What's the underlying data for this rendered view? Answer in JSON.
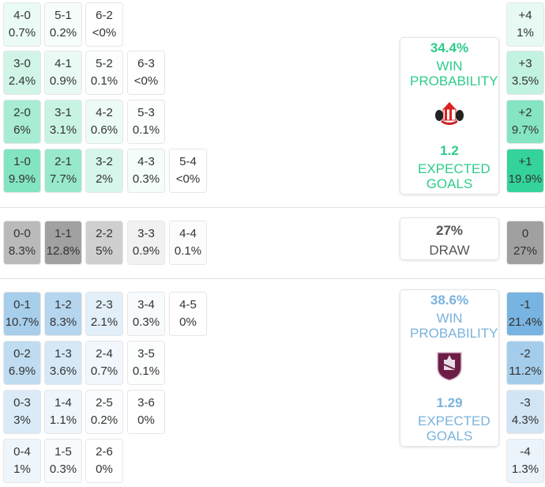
{
  "colors": {
    "home": "#34d399",
    "away": "#78b4e1",
    "draw": "#a0a0a0",
    "home_text": "#2ecc8a",
    "away_text": "#7ab3dc",
    "draw_text": "#555555"
  },
  "home": {
    "rows": [
      [
        {
          "score": "4-0",
          "pct": "0.7%"
        },
        {
          "score": "5-1",
          "pct": "0.2%"
        },
        {
          "score": "6-2",
          "pct": "<0%"
        }
      ],
      [
        {
          "score": "3-0",
          "pct": "2.4%"
        },
        {
          "score": "4-1",
          "pct": "0.9%"
        },
        {
          "score": "5-2",
          "pct": "0.1%"
        },
        {
          "score": "6-3",
          "pct": "<0%"
        }
      ],
      [
        {
          "score": "2-0",
          "pct": "6%"
        },
        {
          "score": "3-1",
          "pct": "3.1%"
        },
        {
          "score": "4-2",
          "pct": "0.6%"
        },
        {
          "score": "5-3",
          "pct": "0.1%"
        }
      ],
      [
        {
          "score": "1-0",
          "pct": "9.9%"
        },
        {
          "score": "2-1",
          "pct": "7.7%"
        },
        {
          "score": "3-2",
          "pct": "2%"
        },
        {
          "score": "4-3",
          "pct": "0.3%"
        },
        {
          "score": "5-4",
          "pct": "<0%"
        }
      ]
    ],
    "margins": [
      {
        "label": "+4",
        "pct": "1%"
      },
      {
        "label": "+3",
        "pct": "3.5%"
      },
      {
        "label": "+2",
        "pct": "9.7%"
      },
      {
        "label": "+1",
        "pct": "19.9%"
      }
    ],
    "win_pct": "34.4%",
    "win_label": "WIN PROBABILITY",
    "xg": "1.2",
    "xg_label": "EXPECTED GOALS",
    "crest": "sunderland-crest"
  },
  "draw": {
    "rows": [
      [
        {
          "score": "0-0",
          "pct": "8.3%"
        },
        {
          "score": "1-1",
          "pct": "12.8%"
        },
        {
          "score": "2-2",
          "pct": "5%"
        },
        {
          "score": "3-3",
          "pct": "0.9%"
        },
        {
          "score": "4-4",
          "pct": "0.1%"
        }
      ]
    ],
    "margins": [
      {
        "label": "0",
        "pct": "27%"
      }
    ],
    "pct": "27%",
    "label": "DRAW"
  },
  "away": {
    "rows": [
      [
        {
          "score": "0-1",
          "pct": "10.7%"
        },
        {
          "score": "1-2",
          "pct": "8.3%"
        },
        {
          "score": "2-3",
          "pct": "2.1%"
        },
        {
          "score": "3-4",
          "pct": "0.3%"
        },
        {
          "score": "4-5",
          "pct": "0%"
        }
      ],
      [
        {
          "score": "0-2",
          "pct": "6.9%"
        },
        {
          "score": "1-3",
          "pct": "3.6%"
        },
        {
          "score": "2-4",
          "pct": "0.7%"
        },
        {
          "score": "3-5",
          "pct": "0.1%"
        }
      ],
      [
        {
          "score": "0-3",
          "pct": "3%"
        },
        {
          "score": "1-4",
          "pct": "1.1%"
        },
        {
          "score": "2-5",
          "pct": "0.2%"
        },
        {
          "score": "3-6",
          "pct": "0%"
        }
      ],
      [
        {
          "score": "0-4",
          "pct": "1%"
        },
        {
          "score": "1-5",
          "pct": "0.3%"
        },
        {
          "score": "2-6",
          "pct": "0%"
        }
      ]
    ],
    "margins": [
      {
        "label": "-1",
        "pct": "21.4%"
      },
      {
        "label": "-2",
        "pct": "11.2%"
      },
      {
        "label": "-3",
        "pct": "4.3%"
      },
      {
        "label": "-4",
        "pct": "1.3%"
      }
    ],
    "win_pct": "38.6%",
    "win_label": "WIN PROBABILITY",
    "xg": "1.29",
    "xg_label": "EXPECTED GOALS",
    "crest": "burnley-crest"
  }
}
